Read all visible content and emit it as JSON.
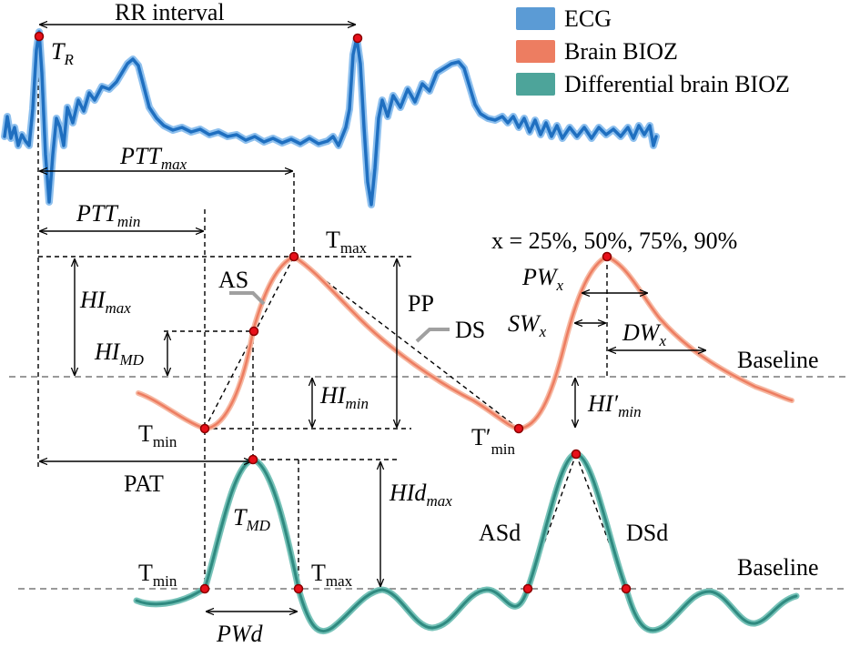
{
  "legend": [
    {
      "label": "ECG",
      "color": "#5b9bd5"
    },
    {
      "label": "Brain BIOZ",
      "color": "#ed7d61"
    },
    {
      "label": "Differential brain BIOZ",
      "color": "#4da49a"
    }
  ],
  "colors": {
    "ecg": "#1f6fc0",
    "ecg_glow": "#8ec0ee",
    "bioz": "#ed7d61",
    "bioz_glow": "#f6b8a2",
    "dbioz": "#2f8a80",
    "dbioz_glow": "#76c2b8",
    "marker": "#e8101a"
  },
  "labels": {
    "rr_interval": "RR interval",
    "t_r": {
      "main": "T",
      "sub": "R"
    },
    "ptt_max": {
      "main": "PTT",
      "sub": "max"
    },
    "ptt_min": {
      "main": "PTT",
      "sub": "min"
    },
    "t_max_top": {
      "main": "T",
      "sub": "max"
    },
    "hi_max": {
      "main": "HI",
      "sub": "max"
    },
    "hi_md": {
      "main": "HI",
      "sub": "MD"
    },
    "hi_min": {
      "main": "HI",
      "sub": "min"
    },
    "as": "AS",
    "ds": "DS",
    "pp": "PP",
    "t_min": {
      "main": "T",
      "sub": "min"
    },
    "t_min_prime": {
      "main": "T′",
      "sub": "min"
    },
    "hi_min_prime": {
      "main": "HI′",
      "sub": "min"
    },
    "x_values": "x = 25%, 50%, 75%, 90%",
    "pw_x": {
      "main": "PW",
      "sub": "x"
    },
    "sw_x": {
      "main": "SW",
      "sub": "x"
    },
    "dw_x": {
      "main": "DW",
      "sub": "x"
    },
    "baseline_top": "Baseline",
    "baseline_bottom": "Baseline",
    "pat": "PAT",
    "t_md": {
      "main": "T",
      "sub": "MD"
    },
    "hid_max": {
      "main": "HId",
      "sub": "max"
    },
    "t_min_bottom": {
      "main": "T",
      "sub": "min"
    },
    "t_max_bottom": {
      "main": "T",
      "sub": "max"
    },
    "pwd": "PWd",
    "asd": "ASd",
    "dsd": "DSd"
  }
}
